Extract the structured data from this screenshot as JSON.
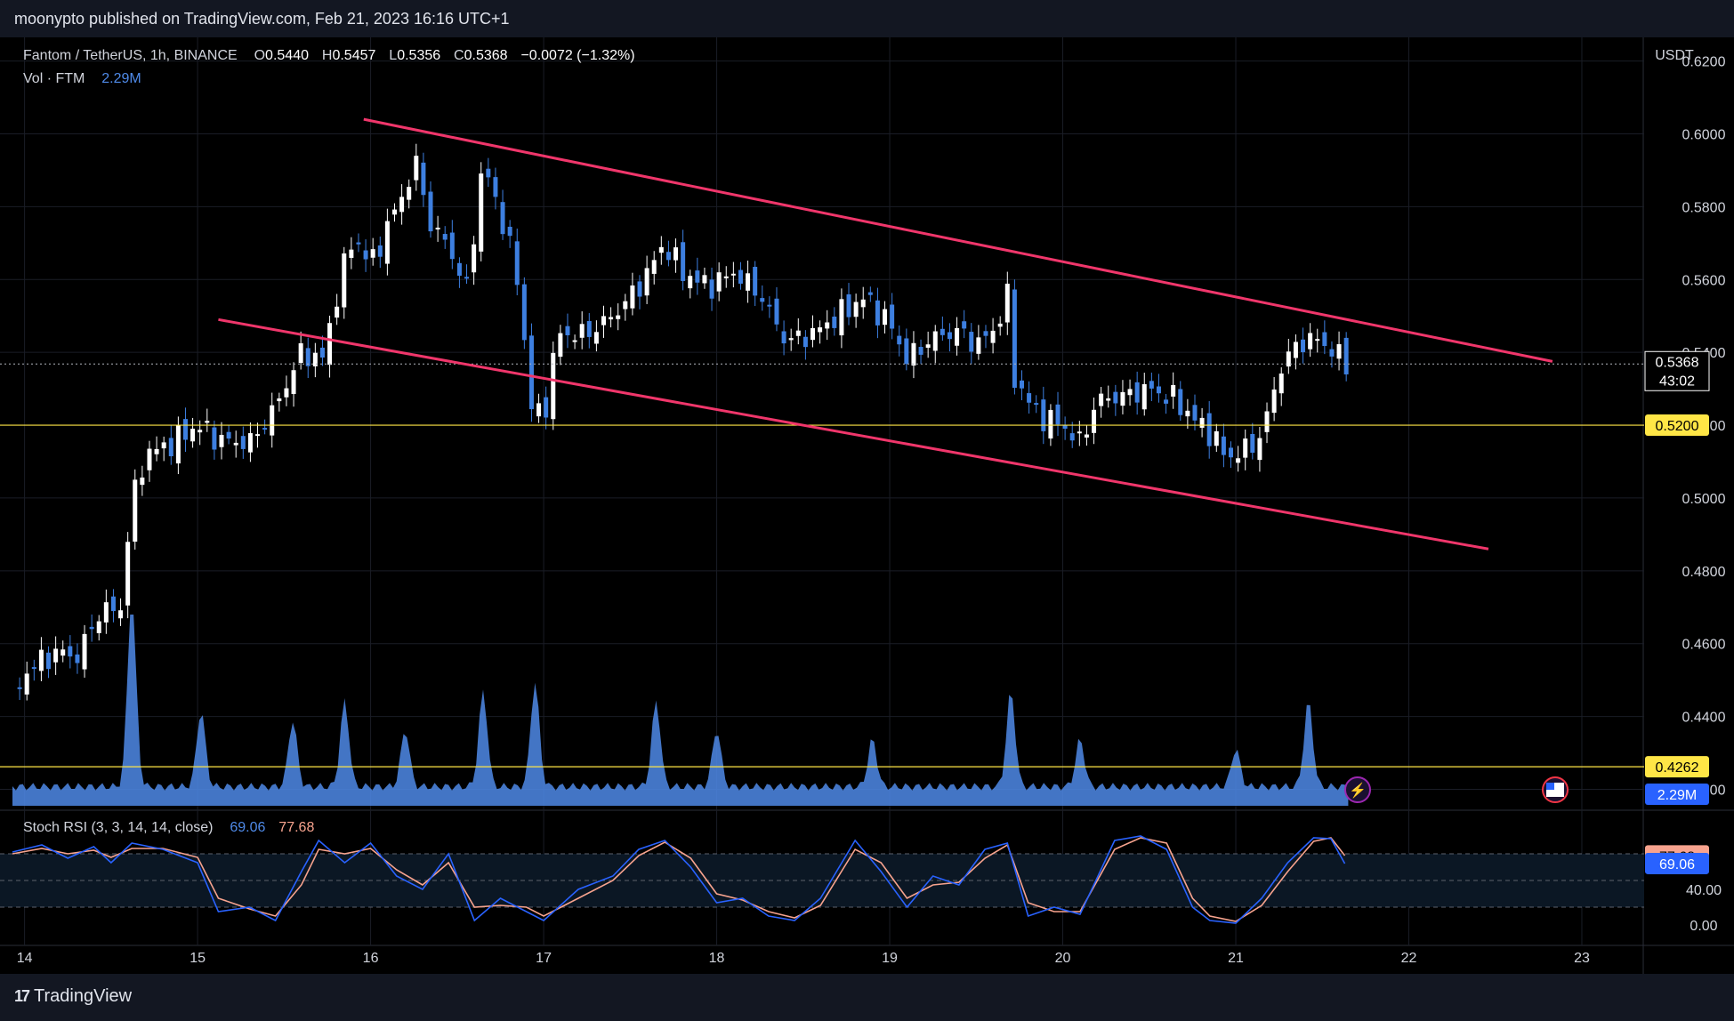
{
  "header": {
    "published_by": "moonypto published on TradingView.com, Feb 21, 2023 16:16 UTC+1"
  },
  "footer": {
    "brand": "TradingView",
    "logo_mark": "17"
  },
  "legend": {
    "symbol": "Fantom / TetherUS, 1h, BINANCE",
    "o_label": "O",
    "open": "0.5440",
    "h_label": "H",
    "high": "0.5457",
    "l_label": "L",
    "low": "0.5356",
    "c_label": "C",
    "close": "0.5368",
    "change": "−0.0072 (−1.32%)",
    "vol_label": "Vol · FTM",
    "vol_value": "2.29M"
  },
  "rsi_legend": {
    "label": "Stoch RSI (3, 3, 14, 14, close)",
    "k_value": "69.06",
    "d_value": "77.68"
  },
  "colors": {
    "up": "#ffffff",
    "down": "#3d7fe0",
    "volume": "#4f8ae8",
    "trendline": "#f0366b",
    "level": "#ffe646",
    "rsi_k": "#2962ff",
    "rsi_d": "#f7a38e",
    "background": "#000000",
    "panel": "#131722"
  },
  "chart_data": {
    "type": "candlestick",
    "title": "Fantom / TetherUS, 1h, BINANCE",
    "currency": "USDT",
    "x_tick_labels": [
      "14",
      "15",
      "16",
      "17",
      "18",
      "19",
      "20",
      "21",
      "22",
      "23"
    ],
    "y_tick_labels": [
      "0.6200",
      "0.6000",
      "0.5800",
      "0.5600",
      "0.5400",
      "0.5200",
      "0.5000",
      "0.4800",
      "0.4600",
      "0.4400",
      "0.4200"
    ],
    "x_range_days": [
      13.93,
      23.36
    ],
    "y_range": [
      0.4145,
      0.6265
    ],
    "last_price": {
      "value": 0.5368,
      "label": "0.5368",
      "countdown": "43:02"
    },
    "horizontal_levels": [
      {
        "value": 0.52,
        "label": "0.5200",
        "color": "#ffe646"
      },
      {
        "value": 0.4262,
        "label": "0.4262",
        "color": "#ffe646"
      }
    ],
    "trendlines": [
      {
        "from": [
          15.96,
          0.604
        ],
        "to": [
          22.83,
          0.5375
        ],
        "color": "#f0366b"
      },
      {
        "from": [
          15.12,
          0.549
        ],
        "to": [
          22.46,
          0.486
        ],
        "color": "#f0366b"
      }
    ],
    "price_path": [
      [
        13.93,
        0.447
      ],
      [
        14.05,
        0.454
      ],
      [
        14.2,
        0.458
      ],
      [
        14.3,
        0.456
      ],
      [
        14.45,
        0.47
      ],
      [
        14.55,
        0.468
      ],
      [
        14.62,
        0.499
      ],
      [
        14.7,
        0.512
      ],
      [
        14.85,
        0.515
      ],
      [
        15.0,
        0.52
      ],
      [
        15.12,
        0.516
      ],
      [
        15.3,
        0.515
      ],
      [
        15.45,
        0.525
      ],
      [
        15.6,
        0.54
      ],
      [
        15.72,
        0.538
      ],
      [
        15.82,
        0.559
      ],
      [
        15.9,
        0.572
      ],
      [
        16.0,
        0.564
      ],
      [
        16.15,
        0.58
      ],
      [
        16.27,
        0.592
      ],
      [
        16.35,
        0.574
      ],
      [
        16.45,
        0.57
      ],
      [
        16.55,
        0.556
      ],
      [
        16.65,
        0.592
      ],
      [
        16.75,
        0.578
      ],
      [
        16.85,
        0.56
      ],
      [
        16.93,
        0.525
      ],
      [
        17.0,
        0.522
      ],
      [
        17.08,
        0.545
      ],
      [
        17.25,
        0.545
      ],
      [
        17.4,
        0.55
      ],
      [
        17.55,
        0.558
      ],
      [
        17.7,
        0.57
      ],
      [
        17.8,
        0.562
      ],
      [
        17.95,
        0.558
      ],
      [
        18.1,
        0.562
      ],
      [
        18.25,
        0.556
      ],
      [
        18.4,
        0.543
      ],
      [
        18.55,
        0.545
      ],
      [
        18.7,
        0.55
      ],
      [
        18.85,
        0.555
      ],
      [
        19.0,
        0.548
      ],
      [
        19.1,
        0.538
      ],
      [
        19.25,
        0.544
      ],
      [
        19.4,
        0.546
      ],
      [
        19.5,
        0.542
      ],
      [
        19.6,
        0.546
      ],
      [
        19.68,
        0.555
      ],
      [
        19.72,
        0.533
      ],
      [
        19.85,
        0.523
      ],
      [
        20.0,
        0.52
      ],
      [
        20.1,
        0.515
      ],
      [
        20.2,
        0.527
      ],
      [
        20.35,
        0.528
      ],
      [
        20.5,
        0.53
      ],
      [
        20.65,
        0.527
      ],
      [
        20.75,
        0.522
      ],
      [
        20.85,
        0.518
      ],
      [
        20.95,
        0.511
      ],
      [
        21.05,
        0.513
      ],
      [
        21.15,
        0.517
      ],
      [
        21.25,
        0.535
      ],
      [
        21.35,
        0.542
      ],
      [
        21.45,
        0.544
      ],
      [
        21.55,
        0.541
      ],
      [
        21.63,
        0.5368
      ]
    ],
    "volume_series": {
      "label": "Vol · FTM",
      "last": "2.29M",
      "spikes": [
        [
          14.62,
          1.0
        ],
        [
          15.02,
          0.4
        ],
        [
          15.55,
          0.35
        ],
        [
          15.85,
          0.45
        ],
        [
          16.2,
          0.3
        ],
        [
          16.65,
          0.5
        ],
        [
          16.95,
          0.55
        ],
        [
          17.65,
          0.45
        ],
        [
          18.0,
          0.3
        ],
        [
          18.9,
          0.25
        ],
        [
          19.7,
          0.5
        ],
        [
          20.1,
          0.25
        ],
        [
          21.0,
          0.2
        ],
        [
          21.42,
          0.45
        ]
      ]
    },
    "stoch_rsi": {
      "label": "Stoch RSI (3, 3, 14, 14, close)",
      "ylim": [
        0,
        100
      ],
      "tick_labels": [
        "40.00",
        "0.00"
      ],
      "bands": [
        80,
        50,
        20
      ],
      "k_last": "69.06",
      "d_last": "77.68",
      "k_path": [
        [
          13.93,
          82
        ],
        [
          14.1,
          90
        ],
        [
          14.25,
          75
        ],
        [
          14.4,
          88
        ],
        [
          14.5,
          70
        ],
        [
          14.62,
          92
        ],
        [
          14.8,
          85
        ],
        [
          15.0,
          70
        ],
        [
          15.12,
          15
        ],
        [
          15.3,
          20
        ],
        [
          15.45,
          5
        ],
        [
          15.6,
          60
        ],
        [
          15.7,
          95
        ],
        [
          15.85,
          70
        ],
        [
          16.0,
          92
        ],
        [
          16.15,
          55
        ],
        [
          16.3,
          40
        ],
        [
          16.45,
          80
        ],
        [
          16.6,
          5
        ],
        [
          16.75,
          30
        ],
        [
          16.9,
          15
        ],
        [
          17.0,
          5
        ],
        [
          17.2,
          40
        ],
        [
          17.4,
          55
        ],
        [
          17.55,
          85
        ],
        [
          17.7,
          95
        ],
        [
          17.85,
          65
        ],
        [
          18.0,
          25
        ],
        [
          18.15,
          30
        ],
        [
          18.3,
          10
        ],
        [
          18.45,
          5
        ],
        [
          18.6,
          30
        ],
        [
          18.8,
          95
        ],
        [
          18.95,
          60
        ],
        [
          19.1,
          20
        ],
        [
          19.25,
          55
        ],
        [
          19.4,
          45
        ],
        [
          19.55,
          85
        ],
        [
          19.68,
          92
        ],
        [
          19.8,
          10
        ],
        [
          19.95,
          20
        ],
        [
          20.1,
          12
        ],
        [
          20.3,
          95
        ],
        [
          20.45,
          100
        ],
        [
          20.6,
          85
        ],
        [
          20.75,
          20
        ],
        [
          20.85,
          5
        ],
        [
          21.0,
          2
        ],
        [
          21.15,
          30
        ],
        [
          21.3,
          70
        ],
        [
          21.45,
          98
        ],
        [
          21.55,
          97
        ],
        [
          21.63,
          69
        ]
      ],
      "d_path": [
        [
          13.93,
          80
        ],
        [
          14.1,
          86
        ],
        [
          14.25,
          80
        ],
        [
          14.4,
          84
        ],
        [
          14.5,
          76
        ],
        [
          14.62,
          86
        ],
        [
          14.8,
          86
        ],
        [
          15.0,
          76
        ],
        [
          15.12,
          30
        ],
        [
          15.3,
          18
        ],
        [
          15.45,
          10
        ],
        [
          15.6,
          45
        ],
        [
          15.7,
          85
        ],
        [
          15.85,
          80
        ],
        [
          16.0,
          86
        ],
        [
          16.15,
          62
        ],
        [
          16.3,
          45
        ],
        [
          16.45,
          70
        ],
        [
          16.6,
          20
        ],
        [
          16.75,
          22
        ],
        [
          16.9,
          20
        ],
        [
          17.0,
          10
        ],
        [
          17.2,
          30
        ],
        [
          17.4,
          50
        ],
        [
          17.55,
          78
        ],
        [
          17.7,
          93
        ],
        [
          17.85,
          75
        ],
        [
          18.0,
          35
        ],
        [
          18.15,
          28
        ],
        [
          18.3,
          15
        ],
        [
          18.45,
          8
        ],
        [
          18.6,
          22
        ],
        [
          18.8,
          85
        ],
        [
          18.95,
          70
        ],
        [
          19.1,
          30
        ],
        [
          19.25,
          45
        ],
        [
          19.4,
          48
        ],
        [
          19.55,
          75
        ],
        [
          19.68,
          90
        ],
        [
          19.8,
          25
        ],
        [
          19.95,
          15
        ],
        [
          20.1,
          15
        ],
        [
          20.3,
          85
        ],
        [
          20.45,
          98
        ],
        [
          20.6,
          92
        ],
        [
          20.75,
          30
        ],
        [
          20.85,
          10
        ],
        [
          21.0,
          4
        ],
        [
          21.15,
          22
        ],
        [
          21.3,
          60
        ],
        [
          21.45,
          94
        ],
        [
          21.55,
          98
        ],
        [
          21.63,
          78
        ]
      ]
    }
  }
}
